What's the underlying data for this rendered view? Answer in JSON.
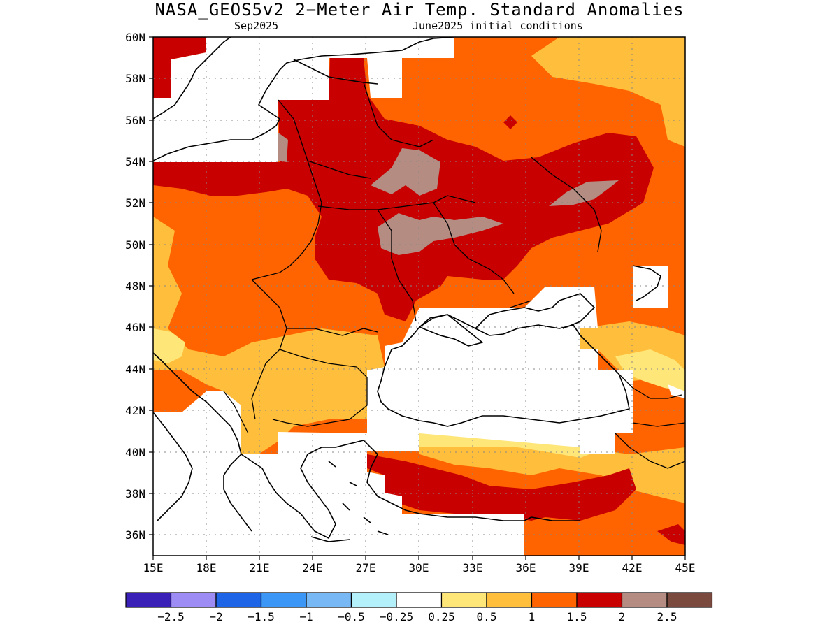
{
  "title": "NASA_GEOS5v2 2−Meter Air Temp. Standard Anomalies",
  "subtitle_left": "Sep2025",
  "subtitle_right": "June2025 initial conditions",
  "map": {
    "lon_range": [
      15,
      45
    ],
    "lat_range": [
      35,
      60
    ],
    "lon_ticks": [
      "15E",
      "18E",
      "21E",
      "24E",
      "27E",
      "30E",
      "33E",
      "36E",
      "39E",
      "42E",
      "45E"
    ],
    "lat_ticks": [
      "36N",
      "38N",
      "40N",
      "42N",
      "44N",
      "46N",
      "48N",
      "50N",
      "52N",
      "54N",
      "56N",
      "58N",
      "60N"
    ],
    "gridlines": "dotted"
  },
  "colorbar": {
    "colors": [
      "#3b20b8",
      "#9e8cf5",
      "#1e64e6",
      "#3c96f5",
      "#78b9f5",
      "#b4f0fa",
      "#ffffff",
      "#ffe678",
      "#ffbe3c",
      "#ff6400",
      "#c80000",
      "#b48c82",
      "#7a4a3e"
    ],
    "labels": [
      "−2.5",
      "−2",
      "−1.5",
      "−1",
      "−0.5",
      "−0.25",
      "0.25",
      "0.5",
      "1",
      "1.5",
      "2",
      "2.5"
    ]
  }
}
